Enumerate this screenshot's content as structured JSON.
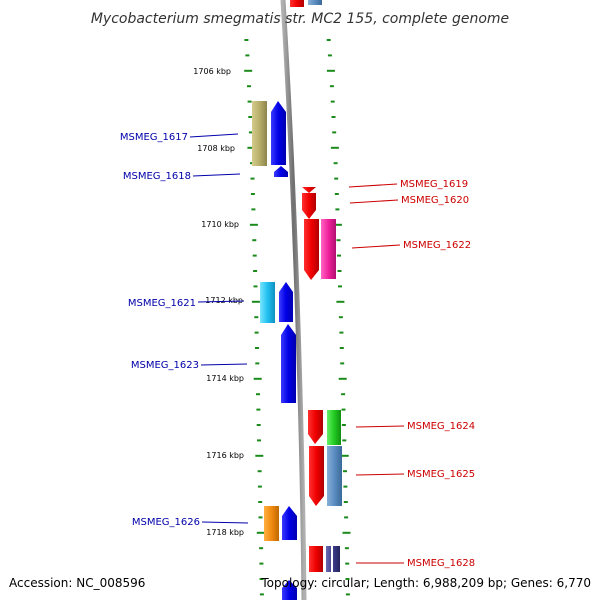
{
  "title": "Mycobacterium smegmatis str. MC2 155, complete genome",
  "footer": {
    "accession": "Accession: NC_008596",
    "summary": "Topology: circular; Length: 6,988,209 bp; Genes: 6,770"
  },
  "ticks": [
    "1706 kbp",
    "1708 kbp",
    "1710 kbp",
    "1712 kbp",
    "1714 kbp",
    "1716 kbp",
    "1718 kbp"
  ],
  "genes": {
    "left": [
      "MSMEG_1617",
      "MSMEG_1618",
      "MSMEG_1621",
      "MSMEG_1623",
      "MSMEG_1626"
    ],
    "right": [
      "MSMEG_1619",
      "MSMEG_1620",
      "MSMEG_1622",
      "MSMEG_1624",
      "MSMEG_1625",
      "MSMEG_1628"
    ]
  },
  "colors": {
    "forward_strand": "#e00000",
    "reverse_strand": "#0000e6",
    "left_label": "#0000aa",
    "right_label": "#cc0000",
    "tick_marks": "#1a8a1a",
    "backbone": "#8c8c8c"
  }
}
